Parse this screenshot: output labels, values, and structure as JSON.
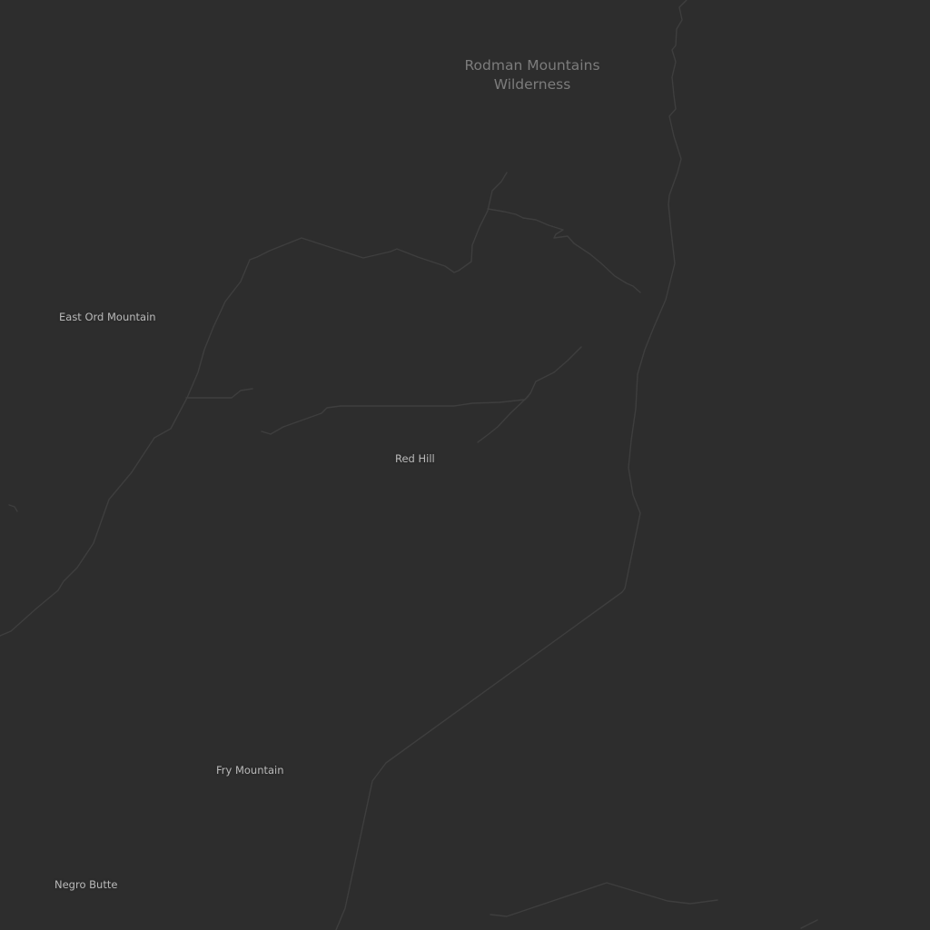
{
  "map": {
    "theme": "dark",
    "background_color": "#2d2d2d",
    "road_color": "#3e3e3e",
    "label_color": "#b9b9b9",
    "area_label_color": "#7c7c7c"
  },
  "area_labels": {
    "rodman": {
      "line1": "Rodman Mountains",
      "line2": "Wilderness"
    }
  },
  "place_labels": {
    "east_ord_mountain": "East Ord Mountain",
    "red_hill": "Red Hill",
    "fry_mountain": "Fry Mountain",
    "negro_butte": "Negro Butte"
  }
}
